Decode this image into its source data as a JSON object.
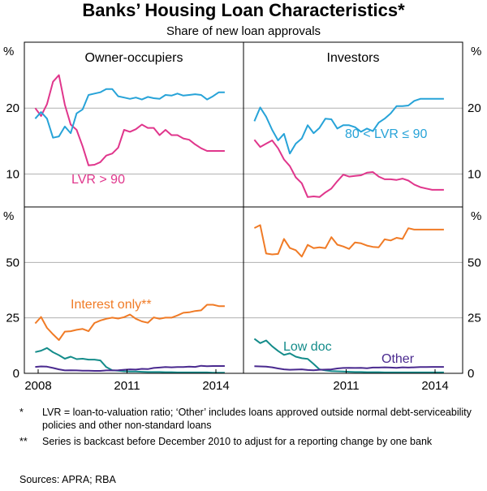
{
  "title": "Banks’ Housing Loan Characteristics*",
  "subtitle": "Share of new loan approvals",
  "colors": {
    "pink": "#e0368c",
    "blue": "#27a3d8",
    "orange": "#f07b26",
    "teal": "#148c8a",
    "purple": "#4a2a8f",
    "grid": "#b0b0b0"
  },
  "chart_data": [
    {
      "type": "line",
      "panel": "top-left",
      "panel_title": "Owner-occupiers",
      "y_unit": "%",
      "ylim": [
        5,
        30
      ],
      "yticks": [
        10,
        20
      ],
      "xlim": [
        2008,
        2014.6
      ],
      "series": [
        {
          "name": "LVR > 90",
          "color": "pink",
          "x": [
            2007.9,
            2008.1,
            2008.3,
            2008.5,
            2008.7,
            2008.9,
            2009.1,
            2009.3,
            2009.5,
            2009.7,
            2009.9,
            2010.1,
            2010.3,
            2010.5,
            2010.7,
            2010.9,
            2011.1,
            2011.3,
            2011.5,
            2011.7,
            2011.9,
            2012.1,
            2012.3,
            2012.5,
            2012.7,
            2012.9,
            2013.1,
            2013.3,
            2013.5,
            2013.7,
            2013.9,
            2014.1,
            2014.3
          ],
          "y": [
            20.0,
            18.8,
            20.6,
            24.0,
            25.0,
            20.5,
            17.5,
            16.7,
            14.2,
            11.3,
            11.4,
            11.8,
            12.8,
            13.1,
            14.0,
            16.7,
            16.4,
            16.8,
            17.5,
            17.0,
            17.0,
            15.9,
            16.7,
            15.9,
            15.9,
            15.4,
            15.2,
            14.5,
            13.9,
            13.5,
            13.5,
            13.5,
            13.5
          ]
        },
        {
          "name": "",
          "color": "blue",
          "x": [
            2007.9,
            2008.1,
            2008.3,
            2008.5,
            2008.7,
            2008.9,
            2009.1,
            2009.3,
            2009.5,
            2009.7,
            2009.9,
            2010.1,
            2010.3,
            2010.5,
            2010.7,
            2010.9,
            2011.1,
            2011.3,
            2011.5,
            2011.7,
            2011.9,
            2012.1,
            2012.3,
            2012.5,
            2012.7,
            2012.9,
            2013.1,
            2013.3,
            2013.5,
            2013.7,
            2013.9,
            2014.1,
            2014.3
          ],
          "y": [
            18.4,
            19.4,
            18.4,
            15.5,
            15.7,
            17.2,
            16.2,
            19.2,
            19.8,
            22.0,
            22.2,
            22.4,
            22.9,
            22.9,
            21.8,
            21.6,
            21.4,
            21.6,
            21.3,
            21.7,
            21.5,
            21.4,
            22.0,
            21.9,
            22.2,
            21.9,
            22.0,
            22.1,
            22.0,
            21.3,
            21.8,
            22.4,
            22.4
          ]
        }
      ],
      "labels": [
        "LVR > 90"
      ]
    },
    {
      "type": "line",
      "panel": "top-right",
      "panel_title": "Investors",
      "y_unit": "%",
      "ylim": [
        5,
        30
      ],
      "yticks": [
        10,
        20
      ],
      "xlim": [
        2008,
        2014.6
      ],
      "series": [
        {
          "name": "",
          "color": "pink",
          "x": [
            2007.9,
            2008.1,
            2008.3,
            2008.5,
            2008.7,
            2008.9,
            2009.1,
            2009.3,
            2009.5,
            2009.7,
            2009.9,
            2010.1,
            2010.3,
            2010.5,
            2010.7,
            2010.9,
            2011.1,
            2011.3,
            2011.5,
            2011.7,
            2011.9,
            2012.1,
            2012.3,
            2012.5,
            2012.7,
            2012.9,
            2013.1,
            2013.3,
            2013.5,
            2013.7,
            2013.9,
            2014.1,
            2014.3
          ],
          "y": [
            15.2,
            14.1,
            14.6,
            15.1,
            13.9,
            12.2,
            11.2,
            9.5,
            8.6,
            6.5,
            6.6,
            6.5,
            7.2,
            7.8,
            8.9,
            9.9,
            9.6,
            9.7,
            9.8,
            10.2,
            10.3,
            9.6,
            9.2,
            9.2,
            9.1,
            9.3,
            9.0,
            8.4,
            8.0,
            7.8,
            7.6,
            7.6,
            7.6
          ]
        },
        {
          "name": "80 < LVR ≤ 90",
          "color": "blue",
          "x": [
            2007.9,
            2008.1,
            2008.3,
            2008.5,
            2008.7,
            2008.9,
            2009.1,
            2009.3,
            2009.5,
            2009.7,
            2009.9,
            2010.1,
            2010.3,
            2010.5,
            2010.7,
            2010.9,
            2011.1,
            2011.3,
            2011.5,
            2011.7,
            2011.9,
            2012.1,
            2012.3,
            2012.5,
            2012.7,
            2012.9,
            2013.1,
            2013.3,
            2013.5,
            2013.7,
            2013.9,
            2014.1,
            2014.3
          ],
          "y": [
            18.0,
            20.1,
            18.7,
            16.7,
            15.1,
            16.1,
            13.1,
            14.6,
            15.4,
            17.4,
            16.2,
            17.0,
            18.4,
            18.3,
            16.9,
            17.4,
            17.4,
            17.1,
            16.4,
            16.9,
            16.5,
            17.8,
            18.4,
            19.2,
            20.3,
            20.3,
            20.4,
            21.1,
            21.4,
            21.4,
            21.4,
            21.4,
            21.4
          ]
        }
      ],
      "labels": [
        "80 < LVR ≤ 90"
      ]
    },
    {
      "type": "line",
      "panel": "bottom-left",
      "y_unit": "%",
      "ylim": [
        0,
        75
      ],
      "yticks": [
        0,
        25,
        50
      ],
      "xlim": [
        2008,
        2014.6
      ],
      "xticks": [
        "2008",
        "2011",
        "2014"
      ],
      "series": [
        {
          "name": "Interest only**",
          "color": "orange",
          "x": [
            2007.9,
            2008.1,
            2008.3,
            2008.5,
            2008.7,
            2008.9,
            2009.1,
            2009.3,
            2009.5,
            2009.7,
            2009.9,
            2010.1,
            2010.3,
            2010.5,
            2010.7,
            2010.9,
            2011.1,
            2011.3,
            2011.5,
            2011.7,
            2011.9,
            2012.1,
            2012.3,
            2012.5,
            2012.7,
            2012.9,
            2013.1,
            2013.3,
            2013.5,
            2013.7,
            2013.9,
            2014.1,
            2014.3
          ],
          "y": [
            22.5,
            25.4,
            20.5,
            17.6,
            15.0,
            18.8,
            19.0,
            19.6,
            20.0,
            19.0,
            22.7,
            23.8,
            24.6,
            25.1,
            24.7,
            25.3,
            26.5,
            24.6,
            23.4,
            22.8,
            25.2,
            24.6,
            25.1,
            25.1,
            26.1,
            27.3,
            27.5,
            28.1,
            28.4,
            30.9,
            30.9,
            30.3,
            30.3
          ]
        },
        {
          "name": "",
          "color": "teal",
          "x": [
            2007.9,
            2008.1,
            2008.3,
            2008.5,
            2008.7,
            2008.9,
            2009.1,
            2009.3,
            2009.5,
            2009.7,
            2009.9,
            2010.1,
            2010.3,
            2010.5,
            2010.7,
            2010.9,
            2011.1,
            2011.3,
            2011.5,
            2011.7,
            2011.9,
            2012.1,
            2012.3,
            2012.5,
            2012.7,
            2012.9,
            2013.1,
            2013.3,
            2013.5,
            2013.7,
            2013.9,
            2014.1,
            2014.3
          ],
          "y": [
            9.6,
            10.2,
            11.4,
            9.5,
            8.2,
            6.6,
            7.5,
            6.4,
            6.6,
            6.2,
            6.2,
            5.8,
            2.8,
            1.4,
            1.2,
            0.9,
            0.8,
            0.8,
            0.7,
            0.6,
            0.6,
            0.6,
            0.5,
            0.5,
            0.4,
            0.4,
            0.4,
            0.4,
            0.4,
            0.4,
            0.3,
            0.3,
            0.3
          ]
        },
        {
          "name": "",
          "color": "purple",
          "x": [
            2007.9,
            2008.1,
            2008.3,
            2008.5,
            2008.7,
            2008.9,
            2009.1,
            2009.3,
            2009.5,
            2009.7,
            2009.9,
            2010.1,
            2010.3,
            2010.5,
            2010.7,
            2010.9,
            2011.1,
            2011.3,
            2011.5,
            2011.7,
            2011.9,
            2012.1,
            2012.3,
            2012.5,
            2012.7,
            2012.9,
            2013.1,
            2013.3,
            2013.5,
            2013.7,
            2013.9,
            2014.1,
            2014.3
          ],
          "y": [
            2.9,
            3.1,
            3.0,
            2.4,
            1.8,
            1.3,
            1.4,
            1.3,
            1.2,
            1.2,
            1.1,
            1.1,
            1.3,
            1.3,
            1.4,
            1.6,
            1.8,
            1.7,
            2.0,
            1.9,
            2.4,
            2.6,
            2.8,
            2.7,
            2.8,
            2.8,
            3.0,
            2.9,
            3.4,
            3.2,
            3.3,
            3.3,
            3.3
          ]
        }
      ],
      "labels": [
        "Interest only**"
      ]
    },
    {
      "type": "line",
      "panel": "bottom-right",
      "y_unit": "%",
      "ylim": [
        0,
        75
      ],
      "yticks": [
        0,
        25,
        50
      ],
      "xlim": [
        2008,
        2014.6
      ],
      "xticks": [
        "2011",
        "2014"
      ],
      "series": [
        {
          "name": "",
          "color": "orange",
          "x": [
            2007.9,
            2008.1,
            2008.3,
            2008.5,
            2008.7,
            2008.9,
            2009.1,
            2009.3,
            2009.5,
            2009.7,
            2009.9,
            2010.1,
            2010.3,
            2010.5,
            2010.7,
            2010.9,
            2011.1,
            2011.3,
            2011.5,
            2011.7,
            2011.9,
            2012.1,
            2012.3,
            2012.5,
            2012.7,
            2012.9,
            2013.1,
            2013.3,
            2013.5,
            2013.7,
            2013.9,
            2014.1,
            2014.3
          ],
          "y": [
            65.5,
            66.8,
            54.0,
            53.6,
            53.8,
            60.6,
            56.5,
            55.5,
            52.6,
            57.9,
            56.4,
            56.8,
            56.4,
            61.4,
            58.0,
            57.2,
            56.1,
            59.0,
            58.6,
            57.6,
            57.0,
            56.8,
            60.4,
            59.9,
            61.1,
            60.6,
            65.4,
            64.8,
            64.8,
            64.8,
            64.8,
            64.8,
            64.8
          ]
        },
        {
          "name": "Low doc",
          "color": "teal",
          "x": [
            2007.9,
            2008.1,
            2008.3,
            2008.5,
            2008.7,
            2008.9,
            2009.1,
            2009.3,
            2009.5,
            2009.7,
            2009.9,
            2010.1,
            2010.3,
            2010.5,
            2010.7,
            2010.9,
            2011.1,
            2011.3,
            2011.5,
            2011.7,
            2011.9,
            2012.1,
            2012.3,
            2012.5,
            2012.7,
            2012.9,
            2013.1,
            2013.3,
            2013.5,
            2013.7,
            2013.9,
            2014.1,
            2014.3
          ],
          "y": [
            15.6,
            13.6,
            14.8,
            12.2,
            10.1,
            8.3,
            9.0,
            7.5,
            6.8,
            6.5,
            4.2,
            1.8,
            1.3,
            1.0,
            0.9,
            0.8,
            0.7,
            0.6,
            0.6,
            0.5,
            0.5,
            0.5,
            0.4,
            0.4,
            0.4,
            0.4,
            0.4,
            0.4,
            0.4,
            0.4,
            0.4,
            0.4,
            0.4
          ]
        },
        {
          "name": "Other",
          "color": "purple",
          "x": [
            2007.9,
            2008.1,
            2008.3,
            2008.5,
            2008.7,
            2008.9,
            2009.1,
            2009.3,
            2009.5,
            2009.7,
            2009.9,
            2010.1,
            2010.3,
            2010.5,
            2010.7,
            2010.9,
            2011.1,
            2011.3,
            2011.5,
            2011.7,
            2011.9,
            2012.1,
            2012.3,
            2012.5,
            2012.7,
            2012.9,
            2013.1,
            2013.3,
            2013.5,
            2013.7,
            2013.9,
            2014.1,
            2014.3
          ],
          "y": [
            3.2,
            3.1,
            3.0,
            2.7,
            2.2,
            1.8,
            1.6,
            1.7,
            1.8,
            1.5,
            1.4,
            1.6,
            1.7,
            1.8,
            2.2,
            2.4,
            2.5,
            2.4,
            2.5,
            2.3,
            2.6,
            2.6,
            2.7,
            2.6,
            2.5,
            2.7,
            2.6,
            2.7,
            2.8,
            2.8,
            2.9,
            2.9,
            2.9
          ]
        }
      ],
      "labels": [
        "Low doc",
        "Other"
      ]
    }
  ],
  "footnotes": [
    {
      "marker": "*",
      "text": "LVR = loan-to-valuation ratio; ‘Other’ includes loans approved outside normal debt-serviceability policies and other non-standard loans"
    },
    {
      "marker": "**",
      "text": "Series is backcast before December 2010 to adjust for a reporting change by one bank"
    }
  ],
  "sources": "Sources:   APRA; RBA"
}
